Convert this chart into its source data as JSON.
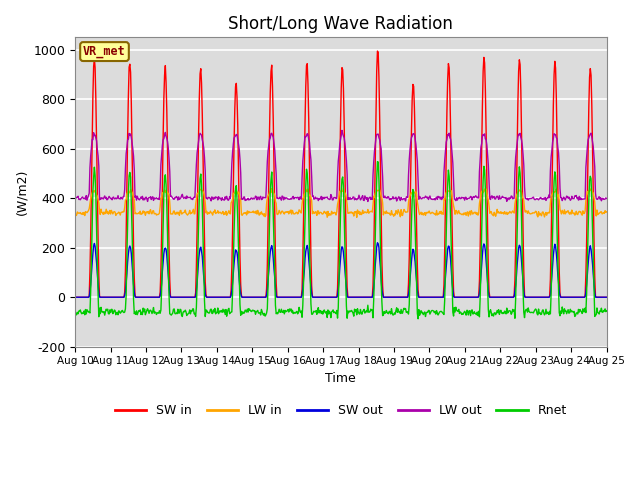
{
  "title": "Short/Long Wave Radiation",
  "xlabel": "Time",
  "ylabel": "(W/m2)",
  "ylim": [
    -200,
    1050
  ],
  "yticks": [
    -200,
    0,
    200,
    400,
    600,
    800,
    1000
  ],
  "start_day": 10,
  "end_day": 25,
  "num_days": 15,
  "colors": {
    "SW_in": "#ff0000",
    "LW_in": "#ffa500",
    "SW_out": "#0000dd",
    "LW_out": "#aa00aa",
    "Rnet": "#00cc00"
  },
  "legend_labels": [
    "SW in",
    "LW in",
    "SW out",
    "LW out",
    "Rnet"
  ],
  "site_label": "VR_met",
  "background_color": "#dcdcdc",
  "fig_background": "#ffffff",
  "sw_in_peaks": [
    970,
    955,
    930,
    930,
    870,
    935,
    945,
    930,
    1000,
    870,
    950,
    970,
    965,
    950,
    930
  ],
  "lw_in_night": 340,
  "lw_in_day_peak": 430,
  "lw_out_night": 400,
  "lw_out_day_peak": 660,
  "sw_out_ratio": 0.22,
  "rnet_night": -100
}
